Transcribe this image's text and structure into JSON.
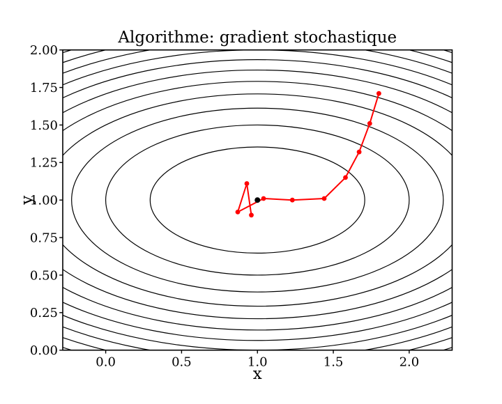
{
  "chart_data": {
    "type": "contour-with-descent-path",
    "title": "Algorithme: gradient stochastique",
    "xlabel": "x",
    "ylabel": "y",
    "xlim": [
      -0.283,
      2.283
    ],
    "ylim": [
      0.0,
      2.0
    ],
    "grid": false,
    "legend": false,
    "xticks": [
      {
        "v": 0.0,
        "label": "0.0"
      },
      {
        "v": 0.5,
        "label": "0.5"
      },
      {
        "v": 1.0,
        "label": "1.0"
      },
      {
        "v": 1.5,
        "label": "1.5"
      },
      {
        "v": 2.0,
        "label": "2.0"
      }
    ],
    "yticks": [
      {
        "v": 0.0,
        "label": "0.00"
      },
      {
        "v": 0.25,
        "label": "0.25"
      },
      {
        "v": 0.5,
        "label": "0.50"
      },
      {
        "v": 0.75,
        "label": "0.75"
      },
      {
        "v": 1.0,
        "label": "1.00"
      },
      {
        "v": 1.25,
        "label": "1.25"
      },
      {
        "v": 1.5,
        "label": "1.50"
      },
      {
        "v": 1.75,
        "label": "1.75"
      },
      {
        "v": 2.0,
        "label": "2.00"
      }
    ],
    "contours": {
      "description": "level sets of f(x,y)=(x-1)^2+4*(y-1)^2 : ellipses centered at (1,1), semi-x=sqrt(L), semi-y=sqrt(L)/2",
      "center": [
        1.0,
        1.0
      ],
      "levels": [
        0.5,
        1.0,
        1.5,
        2.0,
        2.5,
        3.0,
        3.5,
        4.0,
        4.5,
        5.0,
        5.5
      ],
      "color": "#000000",
      "linewidth": 1.2
    },
    "descent_path": {
      "name": "stochastic gradient iterates",
      "color": "#ff0000",
      "linewidth": 2,
      "marker_radius": 3.4,
      "points": [
        [
          1.8,
          1.71
        ],
        [
          1.74,
          1.51
        ],
        [
          1.67,
          1.32
        ],
        [
          1.58,
          1.15
        ],
        [
          1.44,
          1.01
        ],
        [
          1.23,
          1.0
        ],
        [
          1.04,
          1.01
        ],
        [
          0.87,
          0.92
        ],
        [
          0.93,
          1.11
        ],
        [
          0.96,
          0.9
        ]
      ]
    },
    "optimum_point": {
      "color": "#000000",
      "marker_radius": 4.0,
      "point": [
        1.0,
        1.0
      ]
    }
  }
}
